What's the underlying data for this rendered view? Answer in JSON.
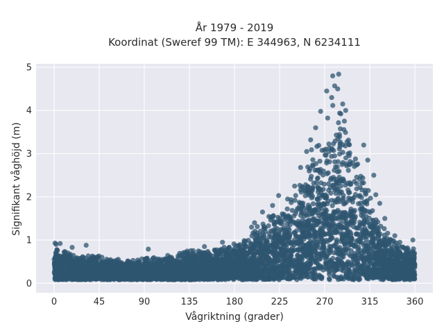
{
  "chart_data": {
    "type": "scatter",
    "title": "År 1979 - 2019",
    "subtitle": "Koordinat (Sweref 99 TM): E 344963, N 6234111",
    "xlabel": "Vågriktning (grader)",
    "ylabel": "Signifikant våghöjd (m)",
    "xlim": [
      -18,
      378
    ],
    "ylim": [
      -0.22,
      5.08
    ],
    "xticks": [
      0,
      45,
      90,
      135,
      180,
      225,
      270,
      315,
      360
    ],
    "yticks": [
      0,
      1,
      2,
      3,
      4,
      5
    ],
    "grid": true,
    "background": "#e8e8f0",
    "grid_color": "#ffffff",
    "marker_color": "#2f5670",
    "envelope": {
      "x": [
        0,
        10,
        20,
        30,
        40,
        50,
        60,
        70,
        80,
        90,
        100,
        110,
        120,
        130,
        140,
        150,
        160,
        170,
        180,
        190,
        200,
        210,
        220,
        230,
        240,
        250,
        255,
        260,
        265,
        270,
        275,
        280,
        285,
        290,
        295,
        300,
        305,
        310,
        315,
        320,
        330,
        340,
        350,
        360
      ],
      "y_max": [
        0.9,
        0.8,
        0.7,
        0.65,
        0.7,
        0.6,
        0.6,
        0.55,
        0.55,
        0.6,
        0.6,
        0.65,
        0.7,
        0.75,
        0.78,
        0.8,
        0.85,
        0.9,
        1.0,
        1.1,
        1.3,
        1.5,
        1.65,
        1.85,
        2.1,
        2.6,
        3.0,
        3.3,
        3.6,
        3.9,
        4.2,
        4.4,
        4.3,
        4.0,
        3.7,
        3.2,
        2.9,
        2.5,
        2.1,
        1.7,
        1.3,
        1.0,
        0.9,
        0.8
      ]
    },
    "outliers": [
      {
        "x": 278,
        "y": 4.8
      },
      {
        "x": 284,
        "y": 4.84
      },
      {
        "x": 280,
        "y": 4.57
      },
      {
        "x": 283,
        "y": 4.5
      },
      {
        "x": 277,
        "y": 4.3
      },
      {
        "x": 272,
        "y": 4.45
      },
      {
        "x": 291,
        "y": 4.0
      },
      {
        "x": 288,
        "y": 4.15
      },
      {
        "x": 266,
        "y": 3.98
      },
      {
        "x": 261,
        "y": 3.6
      },
      {
        "x": 256,
        "y": 3.32
      },
      {
        "x": 252,
        "y": 3.05
      },
      {
        "x": 246,
        "y": 2.68
      },
      {
        "x": 240,
        "y": 2.25
      },
      {
        "x": 233,
        "y": 1.95
      },
      {
        "x": 224,
        "y": 2.03
      },
      {
        "x": 218,
        "y": 1.8
      },
      {
        "x": 208,
        "y": 1.65
      },
      {
        "x": 200,
        "y": 1.4
      },
      {
        "x": 197,
        "y": 1.3
      },
      {
        "x": 309,
        "y": 3.2
      },
      {
        "x": 313,
        "y": 2.85
      },
      {
        "x": 319,
        "y": 2.5
      },
      {
        "x": 321,
        "y": 2.05
      },
      {
        "x": 325,
        "y": 1.85
      },
      {
        "x": 330,
        "y": 1.5
      },
      {
        "x": 340,
        "y": 1.1
      },
      {
        "x": 345,
        "y": 0.95
      },
      {
        "x": 358,
        "y": 1.0
      },
      {
        "x": 1,
        "y": 0.93
      },
      {
        "x": 2,
        "y": 0.9
      },
      {
        "x": 6,
        "y": 0.92
      },
      {
        "x": 18,
        "y": 0.83
      },
      {
        "x": 32,
        "y": 0.88
      },
      {
        "x": 94,
        "y": 0.79
      },
      {
        "x": 150,
        "y": 0.85
      },
      {
        "x": 168,
        "y": 0.95
      }
    ]
  }
}
